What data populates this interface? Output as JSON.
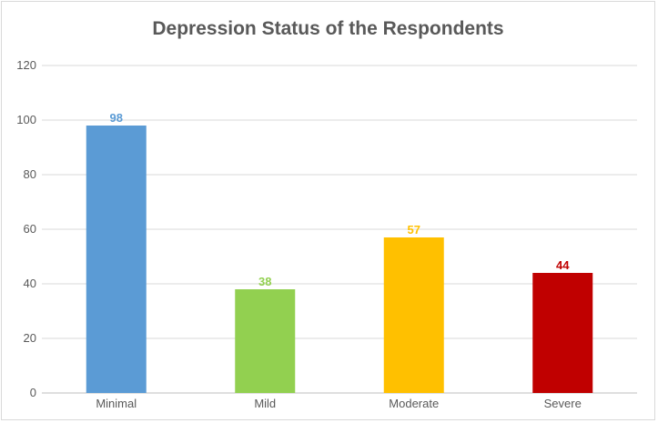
{
  "chart_data": {
    "type": "bar",
    "title": "Depression Status of the Respondents",
    "categories": [
      "Minimal",
      "Mild",
      "Moderate",
      "Severe"
    ],
    "values": [
      98,
      38,
      57,
      44
    ],
    "colors": [
      "#5b9bd5",
      "#92d050",
      "#ffc000",
      "#c00000"
    ],
    "data_labels": [
      "98",
      "38",
      "57",
      "44"
    ],
    "ylim": [
      0,
      120
    ],
    "yticks": [
      0,
      20,
      40,
      60,
      80,
      100,
      120
    ],
    "ytick_labels": [
      "0",
      "20",
      "40",
      "60",
      "80",
      "100",
      "120"
    ],
    "grid": true,
    "xlabel": "",
    "ylabel": ""
  }
}
